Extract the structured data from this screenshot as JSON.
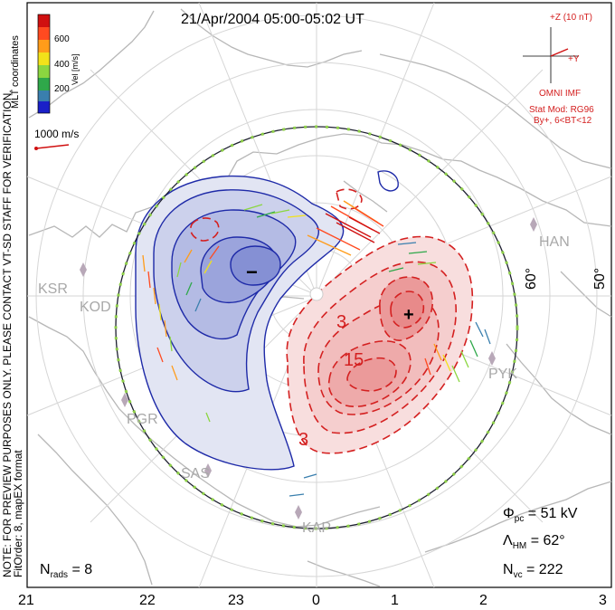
{
  "header": {
    "title": "21/Apr/2004 05:00-05:02 UT",
    "coords": "MLT coordinates"
  },
  "velocity_scale": {
    "unit_label": "Vel [m/s]",
    "ticks": [
      "600",
      "400",
      "200"
    ],
    "colors": [
      "#d01010",
      "#ff4a20",
      "#ff9c1a",
      "#f2e21a",
      "#8bd640",
      "#2fa84a",
      "#3a7fae",
      "#1a20c8"
    ],
    "reference_vector": "1000 m/s"
  },
  "imf": {
    "clock_label_z": "+Z (10 nT)",
    "clock_label_y": "+Y",
    "source": "OMNI IMF",
    "model": "Stat Mod: RG96",
    "condition": "By+, 6<BT<12"
  },
  "notes": {
    "line1": "NOTE: FOR PREVIEW PURPOSES ONLY. PLEASE CONTACT VT-SD STAFF FOR VERIFICATION.",
    "line2": "FitOrder: 8, mapEX format"
  },
  "stats": {
    "phi_pc_sym": "Φ",
    "phi_pc_sub": "pc",
    "phi_pc_val": " = 51 kV",
    "lam_sym": "Λ",
    "lam_sub": "HM",
    "lam_val": " = 62°",
    "nvc_sym": "N",
    "nvc_sub": "vc",
    "nvc_val": " = 222",
    "nrads_sym": "N",
    "nrads_sub": "rads",
    "nrads_val": " = 8"
  },
  "mlt_axis": [
    "21",
    "22",
    "23",
    "0",
    "1",
    "2",
    "3"
  ],
  "latitude_labels": [
    "60°",
    "50°"
  ],
  "stations": [
    "KSR",
    "KOD",
    "PGR",
    "SAS",
    "KAP",
    "PYK",
    "HAN"
  ],
  "contours": {
    "neg_label": "−",
    "pos_label": "+",
    "pos_levels": [
      "3",
      "15",
      "3"
    ]
  },
  "colors": {
    "negative": "#1e2aa8",
    "positive": "#d42020",
    "boundary": "#8fd04a",
    "grid": "#d6d6d6",
    "coast": "#b9b9b9"
  }
}
